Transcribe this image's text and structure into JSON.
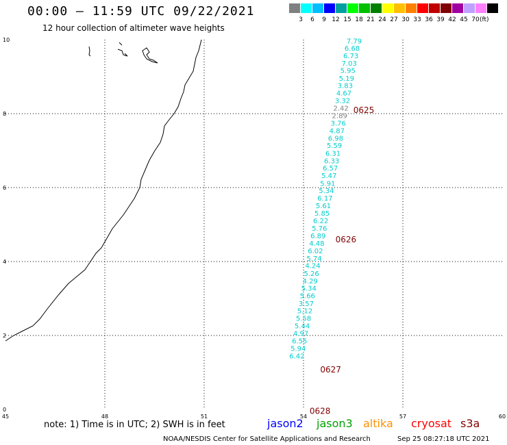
{
  "header": {
    "title": "00:00 – 11:59 UTC 09/22/2021",
    "subtitle": "12 hour collection of altimeter wave heights"
  },
  "legend": {
    "unit": "(ft)",
    "items": [
      {
        "label": "",
        "color": "#808080"
      },
      {
        "label": "3",
        "color": "#00ffff"
      },
      {
        "label": "6",
        "color": "#00bfff"
      },
      {
        "label": "9",
        "color": "#0000ff"
      },
      {
        "label": "12",
        "color": "#00a0a0"
      },
      {
        "label": "15",
        "color": "#00ff00"
      },
      {
        "label": "18",
        "color": "#00c000"
      },
      {
        "label": "21",
        "color": "#008000"
      },
      {
        "label": "24",
        "color": "#ffff00"
      },
      {
        "label": "27",
        "color": "#ffc000"
      },
      {
        "label": "30",
        "color": "#ff8000"
      },
      {
        "label": "33",
        "color": "#ff0000"
      },
      {
        "label": "36",
        "color": "#c00000"
      },
      {
        "label": "39",
        "color": "#800000"
      },
      {
        "label": "42",
        "color": "#a000a0"
      },
      {
        "label": "45",
        "color": "#c0a0ff"
      },
      {
        "label": "70",
        "color": "#ff80ff"
      },
      {
        "label": "",
        "color": "#000000"
      }
    ]
  },
  "axes": {
    "x_ticks": [
      "45",
      "48",
      "51",
      "54",
      "57",
      "60"
    ],
    "y_ticks": [
      "0",
      "2",
      "4",
      "6",
      "8",
      "10"
    ]
  },
  "track": {
    "color": "#00cccc",
    "points": [
      {
        "lon": 55.53,
        "lat": 9.9,
        "value": "7.79"
      },
      {
        "lon": 55.47,
        "lat": 9.7,
        "value": "6.68"
      },
      {
        "lon": 55.43,
        "lat": 9.5,
        "value": "6.73"
      },
      {
        "lon": 55.38,
        "lat": 9.3,
        "value": "7.03"
      },
      {
        "lon": 55.34,
        "lat": 9.1,
        "value": "5.95"
      },
      {
        "lon": 55.3,
        "lat": 8.89,
        "value": "5.19"
      },
      {
        "lon": 55.26,
        "lat": 8.69,
        "value": "3.83"
      },
      {
        "lon": 55.22,
        "lat": 8.49,
        "value": "4.67"
      },
      {
        "lon": 55.18,
        "lat": 8.29,
        "value": "3.32"
      },
      {
        "lon": 55.13,
        "lat": 8.08,
        "value": "2.42",
        "color": "#808080"
      },
      {
        "lon": 55.09,
        "lat": 7.88,
        "value": "2.89",
        "color": "#808080"
      },
      {
        "lon": 55.05,
        "lat": 7.68,
        "value": "3.76"
      },
      {
        "lon": 55.01,
        "lat": 7.47,
        "value": "4.87"
      },
      {
        "lon": 54.97,
        "lat": 7.27,
        "value": "6.98"
      },
      {
        "lon": 54.93,
        "lat": 7.07,
        "value": "5.59"
      },
      {
        "lon": 54.89,
        "lat": 6.86,
        "value": "6.31"
      },
      {
        "lon": 54.85,
        "lat": 6.66,
        "value": "6.33"
      },
      {
        "lon": 54.81,
        "lat": 6.46,
        "value": "6.57"
      },
      {
        "lon": 54.77,
        "lat": 6.26,
        "value": "5.47"
      },
      {
        "lon": 54.73,
        "lat": 6.05,
        "value": "5.91"
      },
      {
        "lon": 54.69,
        "lat": 5.85,
        "value": "5.34"
      },
      {
        "lon": 54.65,
        "lat": 5.65,
        "value": "6.17"
      },
      {
        "lon": 54.6,
        "lat": 5.44,
        "value": "5.61"
      },
      {
        "lon": 54.56,
        "lat": 5.24,
        "value": "5.85"
      },
      {
        "lon": 54.52,
        "lat": 5.04,
        "value": "6.22"
      },
      {
        "lon": 54.48,
        "lat": 4.83,
        "value": "5.76"
      },
      {
        "lon": 54.44,
        "lat": 4.63,
        "value": "6.89"
      },
      {
        "lon": 54.4,
        "lat": 4.43,
        "value": "4.48"
      },
      {
        "lon": 54.36,
        "lat": 4.22,
        "value": "6.02"
      },
      {
        "lon": 54.32,
        "lat": 4.02,
        "value": "5.74"
      },
      {
        "lon": 54.28,
        "lat": 3.82,
        "value": "4.24"
      },
      {
        "lon": 54.24,
        "lat": 3.61,
        "value": "5.26"
      },
      {
        "lon": 54.2,
        "lat": 3.41,
        "value": "4.29"
      },
      {
        "lon": 54.16,
        "lat": 3.21,
        "value": "5.34"
      },
      {
        "lon": 54.12,
        "lat": 3.01,
        "value": "5.66"
      },
      {
        "lon": 54.08,
        "lat": 2.8,
        "value": "3.57"
      },
      {
        "lon": 54.04,
        "lat": 2.6,
        "value": "5.12"
      },
      {
        "lon": 54.0,
        "lat": 2.4,
        "value": "5.58"
      },
      {
        "lon": 53.96,
        "lat": 2.19,
        "value": "5.44"
      },
      {
        "lon": 53.92,
        "lat": 1.99,
        "value": "4.97"
      },
      {
        "lon": 53.88,
        "lat": 1.79,
        "value": "6.55"
      },
      {
        "lon": 53.84,
        "lat": 1.58,
        "value": "5.94"
      },
      {
        "lon": 53.8,
        "lat": 1.38,
        "value": "6.42"
      }
    ]
  },
  "time_labels": [
    {
      "text": "0625",
      "lon": 55.82,
      "lat": 8.02
    },
    {
      "text": "0626",
      "lon": 55.28,
      "lat": 4.52
    },
    {
      "text": "0627",
      "lon": 54.82,
      "lat": 1.0
    },
    {
      "text": "0628",
      "lon": 54.5,
      "lat": -0.12
    }
  ],
  "time_label_color": "#800000",
  "footer": {
    "note": "note:  1) Time is in UTC;  2) SWH is in feet",
    "satellites": [
      {
        "name": "jason2",
        "color": "#0000ff"
      },
      {
        "name": "jason3",
        "color": "#00a000"
      },
      {
        "name": "altika",
        "color": "#ff9000"
      },
      {
        "name": "cryosat",
        "color": "#ff0000"
      },
      {
        "name": "s3a",
        "color": "#800000"
      }
    ],
    "credit": "NOAA/NESDIS Center for Satellite Applications and Research",
    "timestamp": "Sep 25 08:27:18 UTC 2021"
  }
}
